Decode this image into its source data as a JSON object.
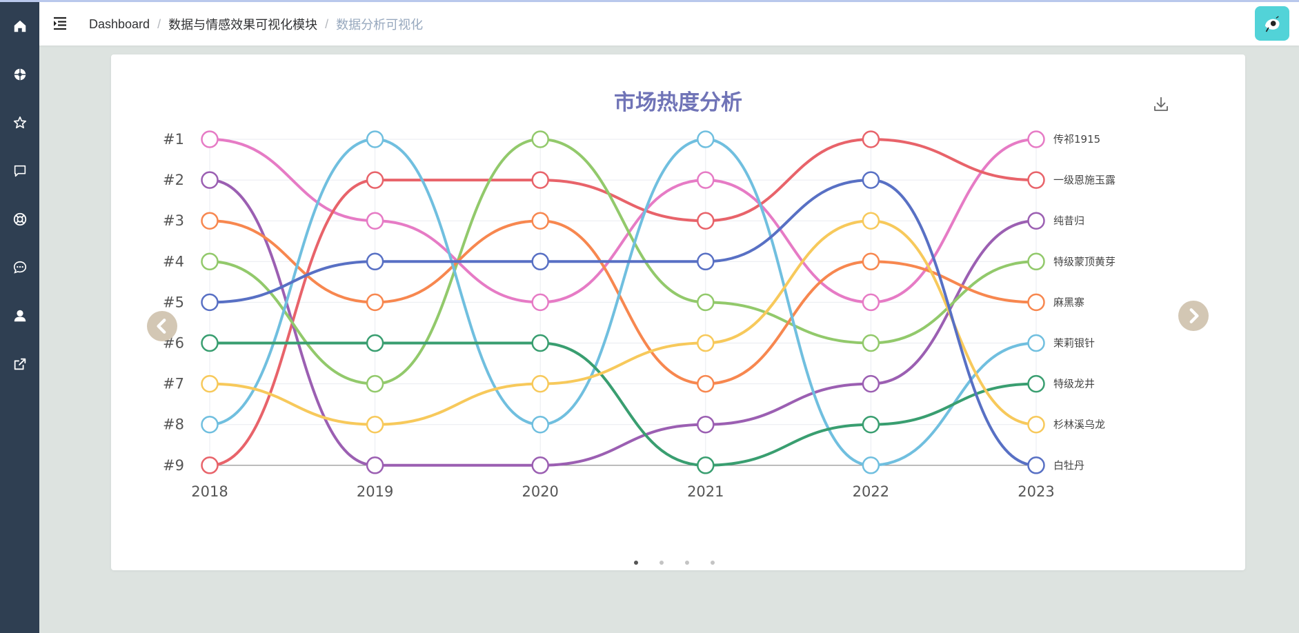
{
  "sidebar": {
    "items": [
      {
        "icon": "home-icon"
      },
      {
        "icon": "compass-icon"
      },
      {
        "icon": "star-icon"
      },
      {
        "icon": "message-icon"
      },
      {
        "icon": "lifebuoy-icon"
      },
      {
        "icon": "chat-bubble-icon"
      },
      {
        "icon": "user-icon"
      },
      {
        "icon": "external-link-icon"
      }
    ]
  },
  "header": {
    "breadcrumb": [
      "Dashboard",
      "数据与情感效果可视化模块",
      "数据分析可视化"
    ],
    "separator": "/"
  },
  "carousel": {
    "page_count": 4,
    "active_page": 1
  },
  "chart_data": {
    "type": "line",
    "subtype": "bump",
    "title": "市场热度分析",
    "x": [
      "2018",
      "2019",
      "2020",
      "2021",
      "2022",
      "2023"
    ],
    "y_tick_labels": [
      "#1",
      "#2",
      "#3",
      "#4",
      "#5",
      "#6",
      "#7",
      "#8",
      "#9"
    ],
    "ylim": [
      1,
      9
    ],
    "y_inverted": true,
    "grid": true,
    "legend": "right-end labels",
    "series": [
      {
        "name": "传祁1915",
        "color": "#e67bc5",
        "ranks": [
          1,
          3,
          5,
          2,
          5,
          1
        ]
      },
      {
        "name": "一级恩施玉露",
        "color": "#e8636a",
        "ranks": [
          9,
          2,
          2,
          3,
          1,
          2
        ]
      },
      {
        "name": "纯昔归",
        "color": "#9b5fb2",
        "ranks": [
          2,
          9,
          9,
          8,
          7,
          3
        ]
      },
      {
        "name": "特级蒙顶黄芽",
        "color": "#92c96b",
        "ranks": [
          4,
          7,
          1,
          5,
          6,
          4
        ]
      },
      {
        "name": "麻黑寨",
        "color": "#f7874f",
        "ranks": [
          3,
          5,
          3,
          7,
          4,
          5
        ]
      },
      {
        "name": "茉莉银针",
        "color": "#70bfdf",
        "ranks": [
          8,
          1,
          8,
          1,
          9,
          6
        ]
      },
      {
        "name": "特级龙井",
        "color": "#399e70",
        "ranks": [
          6,
          6,
          6,
          9,
          8,
          7
        ]
      },
      {
        "name": "杉林溪乌龙",
        "color": "#f7c95b",
        "ranks": [
          7,
          8,
          7,
          6,
          3,
          8
        ]
      },
      {
        "name": "白牡丹",
        "color": "#5870c4",
        "ranks": [
          5,
          4,
          4,
          4,
          2,
          9
        ]
      }
    ]
  }
}
